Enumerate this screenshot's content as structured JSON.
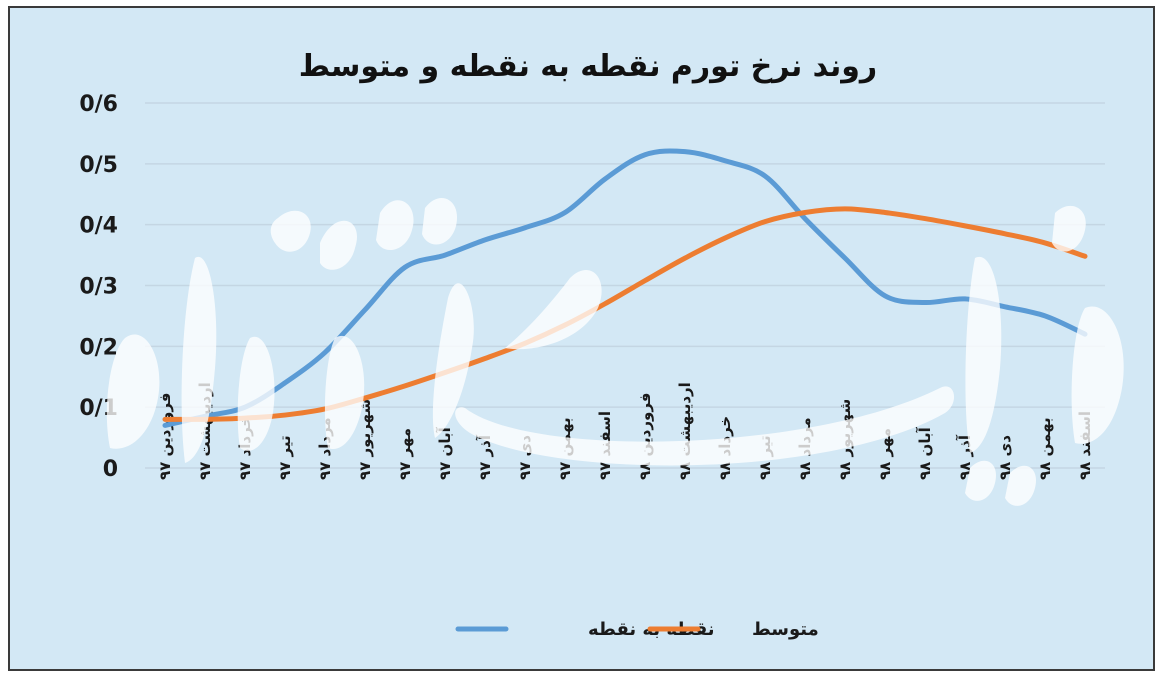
{
  "chart_data": {
    "type": "line",
    "title": "روند نرخ تورم نقطه به نقطه و متوسط",
    "ylim": [
      0,
      0.6
    ],
    "yticks": [
      "0",
      "0/1",
      "0/2",
      "0/3",
      "0/4",
      "0/5",
      "0/6"
    ],
    "categories": [
      "فروردین ۹۷",
      "اردیبهشت ۹۷",
      "خرداد ۹۷",
      "تیر ۹۷",
      "مرداد ۹۷",
      "شهریور ۹۷",
      "مهر ۹۷",
      "آبان ۹۷",
      "آذر ۹۷",
      "دی ۹۷",
      "بهمن ۹۷",
      "اسفند ۹۷",
      "فروردین ۹۸",
      "اردیبهشت ۹۸",
      "خرداد ۹۸",
      "تیر ۹۸",
      "مرداد ۹۸",
      "شهریور ۹۸",
      "مهر ۹۸",
      "آبان ۹۸",
      "آذر ۹۸",
      "دی ۹۸",
      "بهمن ۹۸",
      "اسفند ۹۸"
    ],
    "series": [
      {
        "name": "نقطه به نقطه",
        "color": "#5b9bd5",
        "values": [
          0.07,
          0.085,
          0.1,
          0.14,
          0.19,
          0.26,
          0.33,
          0.35,
          0.375,
          0.395,
          0.42,
          0.475,
          0.515,
          0.52,
          0.505,
          0.48,
          0.41,
          0.345,
          0.283,
          0.272,
          0.278,
          0.265,
          0.25,
          0.22
        ]
      },
      {
        "name": "متوسط",
        "color": "#ed7d31",
        "values": [
          0.08,
          0.08,
          0.082,
          0.087,
          0.097,
          0.115,
          0.135,
          0.157,
          0.18,
          0.205,
          0.235,
          0.27,
          0.308,
          0.345,
          0.378,
          0.405,
          0.42,
          0.426,
          0.42,
          0.41,
          0.398,
          0.385,
          0.37,
          0.348
        ]
      }
    ],
    "grid": true,
    "legend": "bottom",
    "watermark": "دنیای اقتصاد"
  }
}
